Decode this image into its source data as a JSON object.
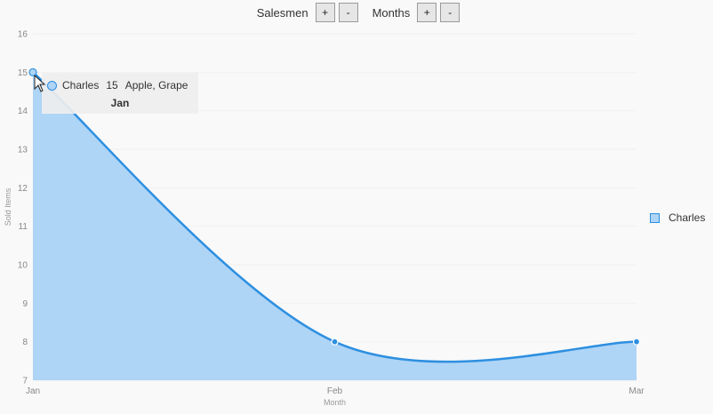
{
  "controls": {
    "salesmen_label": "Salesmen",
    "months_label": "Months",
    "plus": "+",
    "minus": "-"
  },
  "chart_data": {
    "type": "area",
    "categories": [
      "Jan",
      "Feb",
      "Mar"
    ],
    "series": [
      {
        "name": "Charles",
        "values": [
          15,
          8,
          8
        ],
        "color": "#2d8fe0",
        "fill": "#aed4f6"
      }
    ],
    "xlabel": "Month",
    "ylabel": "Sold Items",
    "ylim": [
      7,
      16
    ],
    "yticks": [
      7,
      8,
      9,
      10,
      11,
      12,
      13,
      14,
      15,
      16
    ],
    "grid": true,
    "legend_position": "right"
  },
  "tooltip": {
    "series": "Charles",
    "value": "15",
    "items": "Apple, Grape",
    "category": "Jan"
  }
}
